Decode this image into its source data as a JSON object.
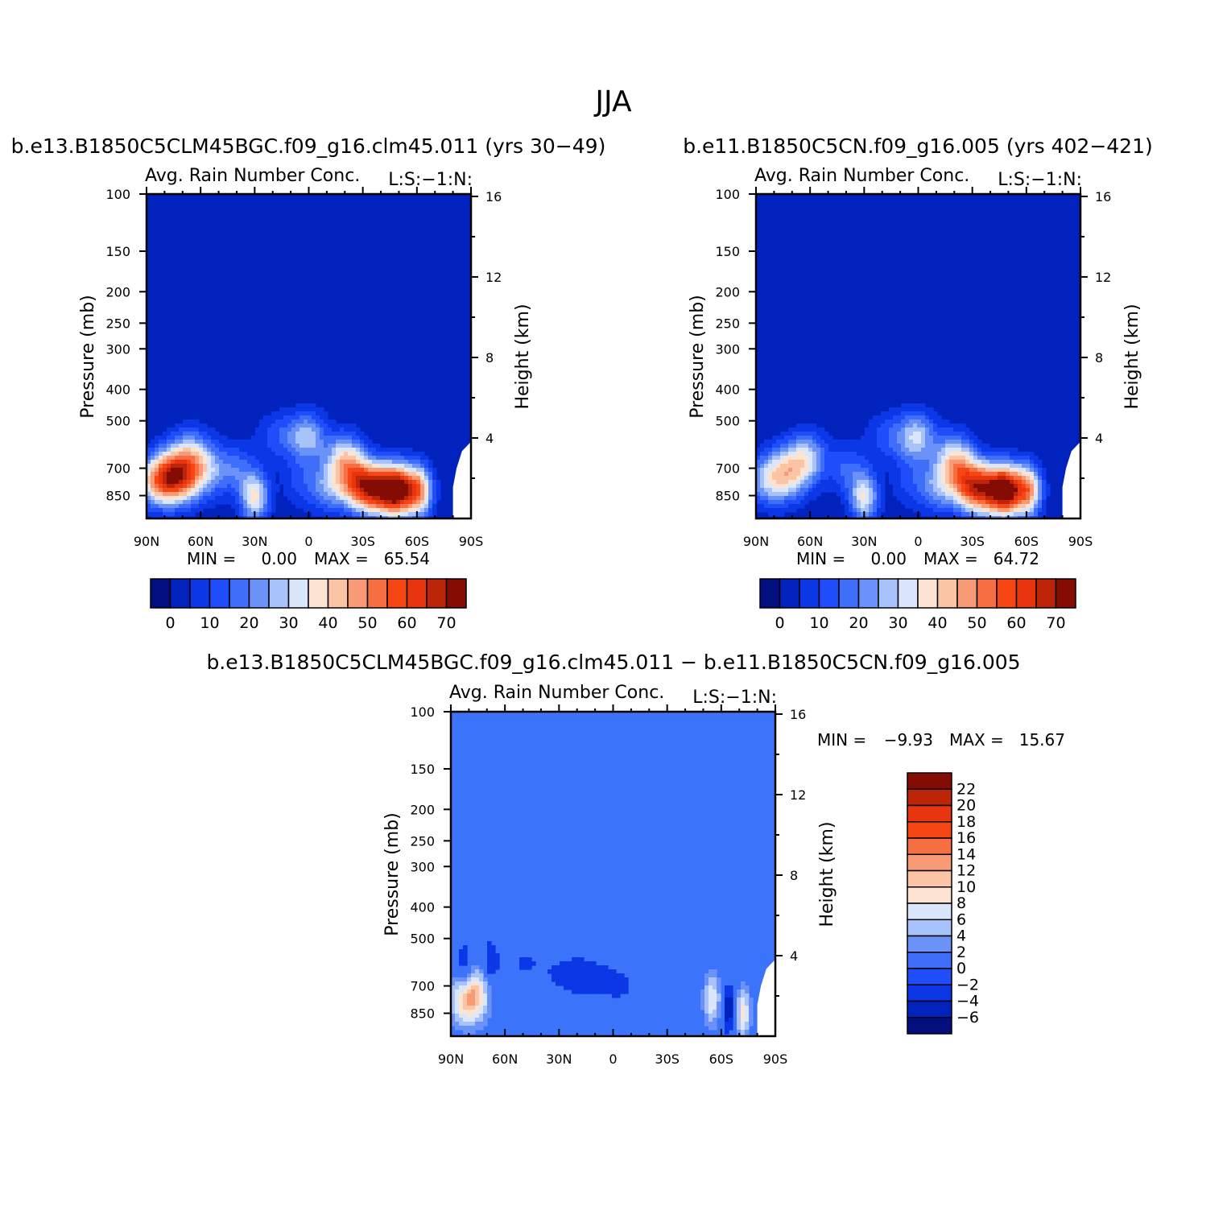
{
  "figure": {
    "title": "JJA",
    "colors": {
      "background": "#0222bd",
      "diff_background": "#3b73fb",
      "axis": "#000000"
    }
  },
  "chart_data": [
    {
      "type": "heatmap",
      "subtitle": "b.e13.B1850C5CLM45BGC.f09_g16.clm45.011 (yrs 30−49)",
      "left_string": "Avg. Rain Number Conc.",
      "right_string": "L:S:−1:N:",
      "ylabel": "Pressure (mb)",
      "ylabel_right": "Height (km)",
      "x_ticks": [
        "90N",
        "60N",
        "30N",
        "0",
        "30S",
        "60S",
        "90S"
      ],
      "y_ticks": [
        "100",
        "150",
        "200",
        "250",
        "300",
        "400",
        "500",
        "700",
        "850"
      ],
      "y_right_ticks": [
        "16",
        "12",
        "8",
        "4"
      ],
      "min_label": "MIN =",
      "min_value": "0.00",
      "max_label": "MAX =",
      "max_value": "65.54",
      "colorbar_labels": [
        "0",
        "10",
        "20",
        "30",
        "40",
        "50",
        "60",
        "70"
      ],
      "colorbar_colors": [
        "#030f7f",
        "#0222bd",
        "#0b37e6",
        "#1f4dfa",
        "#3f6efb",
        "#6b92f9",
        "#a8c2fb",
        "#d9e6fc",
        "#fde3d2",
        "#fbc4a5",
        "#f89a75",
        "#f76e43",
        "#f64613",
        "#e83510",
        "#bd2509",
        "#850c03"
      ],
      "blobs": [
        {
          "lat": 80,
          "p": 770,
          "r": 16,
          "v": 45
        },
        {
          "lat": 72,
          "p": 720,
          "r": 14,
          "v": 34
        },
        {
          "lat": 65,
          "p": 620,
          "r": 12,
          "v": 20
        },
        {
          "lat": 55,
          "p": 720,
          "r": 12,
          "v": 16
        },
        {
          "lat": 40,
          "p": 700,
          "r": 10,
          "v": 14
        },
        {
          "lat": 30,
          "p": 860,
          "r": 8,
          "v": 36
        },
        {
          "lat": 15,
          "p": 560,
          "r": 14,
          "v": 14
        },
        {
          "lat": 0,
          "p": 560,
          "r": 10,
          "v": 24
        },
        {
          "lat": 5,
          "p": 780,
          "r": 10,
          "v": 10
        },
        {
          "lat": -10,
          "p": 800,
          "r": 10,
          "v": 20
        },
        {
          "lat": -20,
          "p": 650,
          "r": 10,
          "v": 32
        },
        {
          "lat": -28,
          "p": 780,
          "r": 12,
          "v": 40
        },
        {
          "lat": -38,
          "p": 820,
          "r": 13,
          "v": 44
        },
        {
          "lat": -50,
          "p": 820,
          "r": 10,
          "v": 62
        },
        {
          "lat": -62,
          "p": 820,
          "r": 7,
          "v": 38
        }
      ]
    },
    {
      "type": "heatmap",
      "subtitle": "b.e11.B1850C5CN.f09_g16.005 (yrs 402−421)",
      "left_string": "Avg. Rain Number Conc.",
      "right_string": "L:S:−1:N:",
      "ylabel": "Pressure (mb)",
      "ylabel_right": "Height (km)",
      "x_ticks": [
        "90N",
        "60N",
        "30N",
        "0",
        "30S",
        "60S",
        "90S"
      ],
      "y_ticks": [
        "100",
        "150",
        "200",
        "250",
        "300",
        "400",
        "500",
        "700",
        "850"
      ],
      "y_right_ticks": [
        "16",
        "12",
        "8",
        "4"
      ],
      "min_label": "MIN =",
      "min_value": "0.00",
      "max_label": "MAX =",
      "max_value": "64.72",
      "colorbar_labels": [
        "0",
        "10",
        "20",
        "30",
        "40",
        "50",
        "60",
        "70"
      ],
      "colorbar_colors": [
        "#030f7f",
        "#0222bd",
        "#0b37e6",
        "#1f4dfa",
        "#3f6efb",
        "#6b92f9",
        "#a8c2fb",
        "#d9e6fc",
        "#fde3d2",
        "#fbc4a5",
        "#f89a75",
        "#f76e43",
        "#f64613",
        "#e83510",
        "#bd2509",
        "#850c03"
      ],
      "blobs": [
        {
          "lat": 80,
          "p": 760,
          "r": 16,
          "v": 32
        },
        {
          "lat": 70,
          "p": 680,
          "r": 12,
          "v": 22
        },
        {
          "lat": 60,
          "p": 640,
          "r": 10,
          "v": 20
        },
        {
          "lat": 40,
          "p": 700,
          "r": 10,
          "v": 14
        },
        {
          "lat": 30,
          "p": 860,
          "r": 8,
          "v": 34
        },
        {
          "lat": 15,
          "p": 560,
          "r": 14,
          "v": 14
        },
        {
          "lat": 0,
          "p": 560,
          "r": 10,
          "v": 26
        },
        {
          "lat": 5,
          "p": 780,
          "r": 10,
          "v": 10
        },
        {
          "lat": -10,
          "p": 800,
          "r": 10,
          "v": 20
        },
        {
          "lat": -20,
          "p": 650,
          "r": 10,
          "v": 32
        },
        {
          "lat": -28,
          "p": 780,
          "r": 12,
          "v": 38
        },
        {
          "lat": -38,
          "p": 820,
          "r": 13,
          "v": 42
        },
        {
          "lat": -50,
          "p": 820,
          "r": 10,
          "v": 60
        },
        {
          "lat": -62,
          "p": 820,
          "r": 7,
          "v": 36
        }
      ]
    },
    {
      "type": "heatmap",
      "subtitle": "b.e13.B1850C5CLM45BGC.f09_g16.clm45.011 − b.e11.B1850C5CN.f09_g16.005",
      "left_string": "Avg. Rain Number Conc.",
      "right_string": "L:S:−1:N:",
      "ylabel": "Pressure (mb)",
      "ylabel_right": "Height (km)",
      "x_ticks": [
        "90N",
        "60N",
        "30N",
        "0",
        "30S",
        "60S",
        "90S"
      ],
      "y_ticks": [
        "100",
        "150",
        "200",
        "250",
        "300",
        "400",
        "500",
        "700",
        "850"
      ],
      "y_right_ticks": [
        "16",
        "12",
        "8",
        "4"
      ],
      "min_label": "MIN =",
      "min_value": "−9.93",
      "max_label": "MAX =",
      "max_value": "15.67",
      "colorbar_labels": [
        "22",
        "20",
        "18",
        "16",
        "14",
        "12",
        "10",
        "8",
        "6",
        "4",
        "2",
        "0",
        "−2",
        "−4",
        "−6"
      ],
      "colorbar_colors": [
        "#850c03",
        "#bd2509",
        "#e83510",
        "#f64613",
        "#f76e43",
        "#f89a75",
        "#fbc4a5",
        "#fde3d2",
        "#d9e6fc",
        "#a8c2fb",
        "#6b92f9",
        "#3f6efb",
        "#1f4dfa",
        "#0b37e6",
        "#0222bd",
        "#030f7f"
      ],
      "blobs": [
        {
          "lat": 82,
          "p": 770,
          "r": 9,
          "v": 10
        },
        {
          "lat": 75,
          "p": 740,
          "r": 8,
          "v": 6
        },
        {
          "lat": 83,
          "p": 620,
          "r": 4,
          "v": -5
        },
        {
          "lat": 68,
          "p": 600,
          "r": 4,
          "v": -4
        },
        {
          "lat": 50,
          "p": 600,
          "r": 14,
          "v": -2
        },
        {
          "lat": 20,
          "p": 650,
          "r": 18,
          "v": -3
        },
        {
          "lat": -5,
          "p": 700,
          "r": 14,
          "v": -2
        },
        {
          "lat": -30,
          "p": 800,
          "r": 10,
          "v": -1
        },
        {
          "lat": -55,
          "p": 770,
          "r": 5,
          "v": 8
        },
        {
          "lat": -64,
          "p": 820,
          "r": 4,
          "v": -6
        },
        {
          "lat": -72,
          "p": 850,
          "r": 4,
          "v": 9
        },
        {
          "lat": 45,
          "p": 830,
          "r": 6,
          "v": 2
        }
      ]
    }
  ]
}
